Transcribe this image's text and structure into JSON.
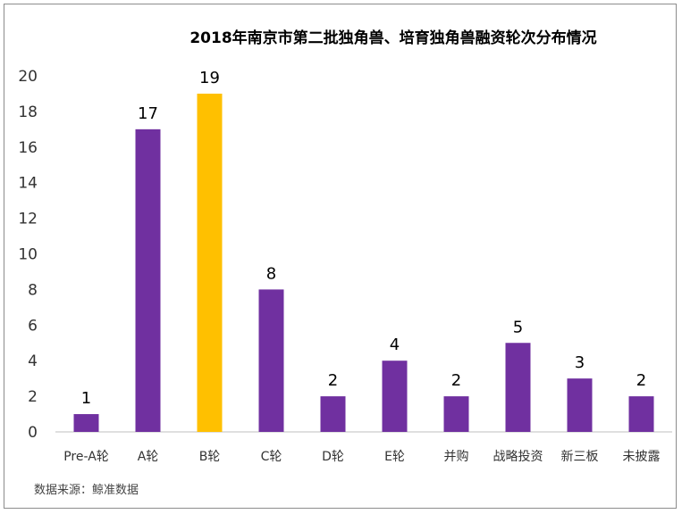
{
  "chart_data": {
    "type": "bar",
    "title": "2018年南京市第二批独角兽、培育独角兽融资轮次分布情况",
    "categories": [
      "Pre-A轮",
      "A轮",
      "B轮",
      "C轮",
      "D轮",
      "E轮",
      "并购",
      "战略投资",
      "新三板",
      "未披露"
    ],
    "values": [
      1,
      17,
      19,
      8,
      2,
      4,
      2,
      5,
      3,
      2
    ],
    "ylim": [
      0,
      20
    ],
    "yticks": [
      0,
      2,
      4,
      6,
      8,
      10,
      12,
      14,
      16,
      18,
      20
    ],
    "xlabel": "",
    "ylabel": "",
    "grid": false,
    "legend": "none",
    "colors": {
      "bar": "#7030A0",
      "highlight": "#FFC000",
      "axis": "#bfbfbf"
    },
    "highlight_category": "B轮"
  },
  "footer": {
    "source": "数据来源：鲸准数据"
  }
}
